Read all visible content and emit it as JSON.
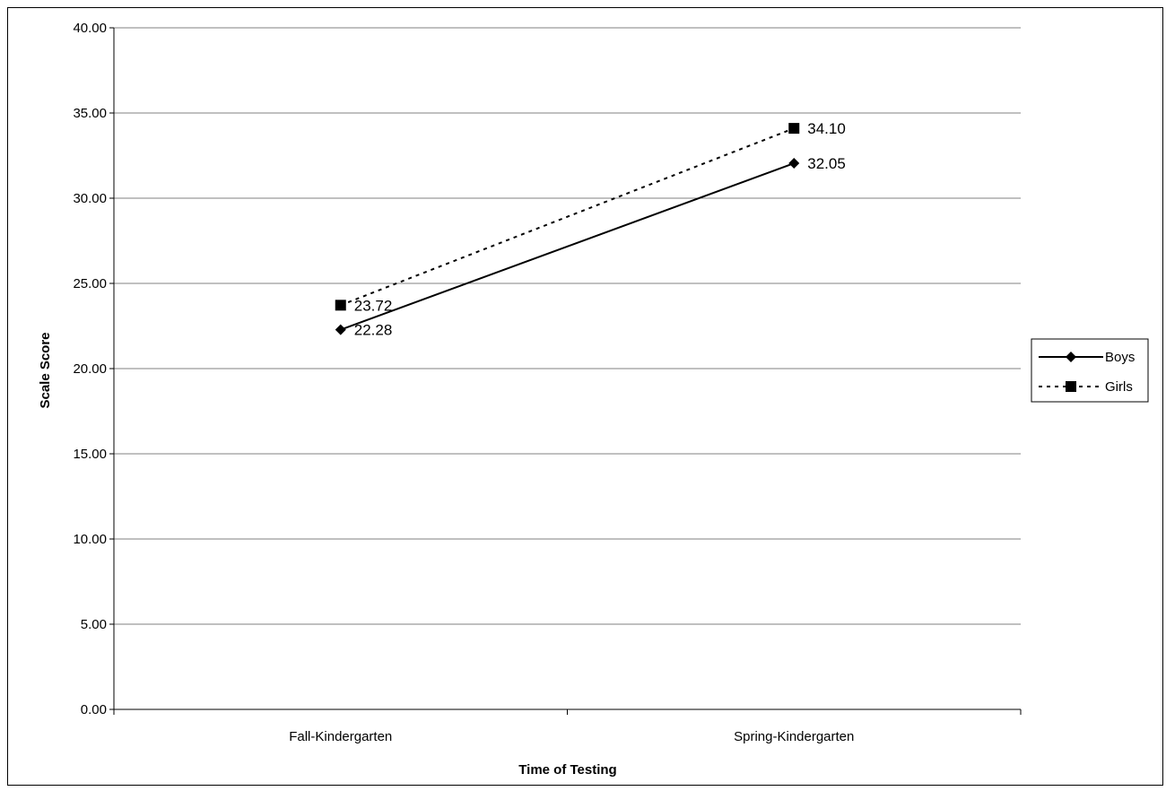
{
  "chart_data": {
    "type": "line",
    "title": "",
    "xlabel": "Time of Testing",
    "ylabel": "Scale Score",
    "categories": [
      "Fall-Kindergarten",
      "Spring-Kindergarten"
    ],
    "ylim": [
      0,
      40
    ],
    "yticks": [
      0,
      5,
      10,
      15,
      20,
      25,
      30,
      35,
      40
    ],
    "ytick_labels": [
      "0.00",
      "5.00",
      "10.00",
      "15.00",
      "20.00",
      "25.00",
      "30.00",
      "35.00",
      "40.00"
    ],
    "grid": "horizontal",
    "legend_position": "right",
    "series": [
      {
        "name": "Boys",
        "values": [
          22.28,
          32.05
        ],
        "labels": [
          "22.28",
          "32.05"
        ],
        "line_style": "solid",
        "marker": "diamond",
        "color": "#000000"
      },
      {
        "name": "Girls",
        "values": [
          23.72,
          34.1
        ],
        "labels": [
          "23.72",
          "34.10"
        ],
        "line_style": "dotted",
        "marker": "square",
        "color": "#000000"
      }
    ]
  }
}
